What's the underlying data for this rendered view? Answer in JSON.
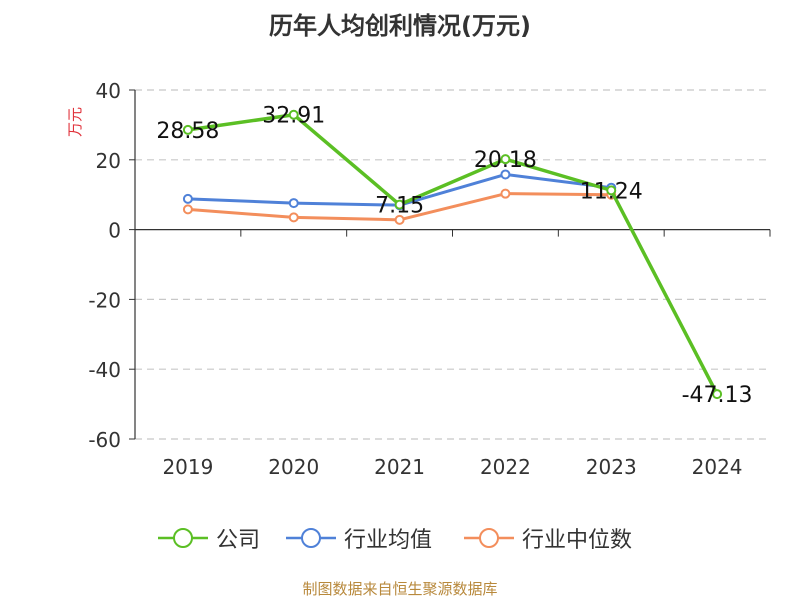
{
  "title": "历年人均创利情况(万元)",
  "source_note": "制图数据来自恒生聚源数据库",
  "colors": {
    "company": "#5bbf24",
    "industry_avg": "#4f81d8",
    "industry_median": "#f38e5c",
    "ylabel": "#e0323b"
  },
  "chart_data": {
    "type": "line",
    "title": "历年人均创利情况(万元)",
    "xlabel": "",
    "ylabel": "万元",
    "categories": [
      "2019",
      "2020",
      "2021",
      "2022",
      "2023",
      "2024"
    ],
    "ylim": [
      -60,
      40
    ],
    "yticks": [
      40,
      20,
      0,
      -20,
      -40,
      -60
    ],
    "grid": true,
    "legend_position": "bottom",
    "series": [
      {
        "name": "公司",
        "color": "#5bbf24",
        "values": [
          28.58,
          32.91,
          7.15,
          20.18,
          11.24,
          -47.13
        ],
        "labels": [
          "28.58",
          "32.91",
          "7.15",
          "20.18",
          "11.24",
          "-47.13"
        ]
      },
      {
        "name": "行业均值",
        "color": "#4f81d8",
        "values": [
          8.8,
          7.6,
          7.0,
          15.8,
          12.0,
          null
        ]
      },
      {
        "name": "行业中位数",
        "color": "#f38e5c",
        "values": [
          5.8,
          3.5,
          2.8,
          10.3,
          10.0,
          null
        ]
      }
    ]
  }
}
